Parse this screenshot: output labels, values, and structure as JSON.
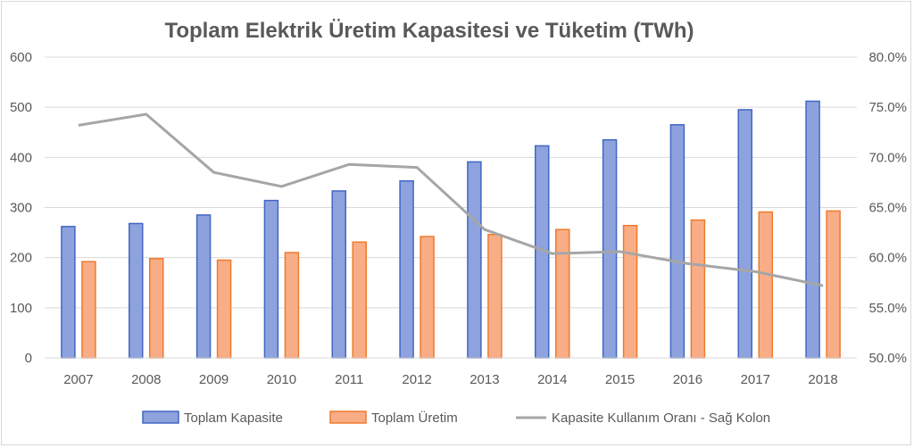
{
  "chart_data": {
    "type": "bar",
    "title": "Toplam  Elektrik  Üretim  Kapasitesi  ve  Tüketim  (TWh)",
    "categories": [
      "2007",
      "2008",
      "2009",
      "2010",
      "2011",
      "2012",
      "2013",
      "2014",
      "2015",
      "2016",
      "2017",
      "2018"
    ],
    "series": [
      {
        "name": "Toplam Kapasite",
        "kind": "bar",
        "axis": "left",
        "color": "#8ea2dd",
        "stroke": "#4266c4",
        "values": [
          262,
          268,
          285,
          314,
          333,
          353,
          391,
          423,
          435,
          465,
          495,
          512
        ]
      },
      {
        "name": "Toplam Üretim",
        "kind": "bar",
        "axis": "left",
        "color": "#f8ad87",
        "stroke": "#f07a2c",
        "values": [
          192,
          198,
          195,
          210,
          231,
          242,
          246,
          256,
          264,
          275,
          291,
          293
        ]
      },
      {
        "name": "Kapasite Kullanım Oranı - Sağ Kolon",
        "kind": "line",
        "axis": "right",
        "color": "#a6a6a6",
        "values": [
          73.2,
          74.3,
          68.5,
          67.1,
          69.3,
          69.0,
          62.8,
          60.4,
          60.6,
          59.4,
          58.6,
          57.2
        ]
      }
    ],
    "y_left": {
      "min": 0,
      "max": 600,
      "ticks": [
        "0",
        "100",
        "200",
        "300",
        "400",
        "500",
        "600"
      ]
    },
    "y_right": {
      "min": 50,
      "max": 80,
      "ticks": [
        "50.0%",
        "55.0%",
        "60.0%",
        "65.0%",
        "70.0%",
        "75.0%",
        "80.0%"
      ]
    },
    "grid": true,
    "legend": "bottom"
  }
}
